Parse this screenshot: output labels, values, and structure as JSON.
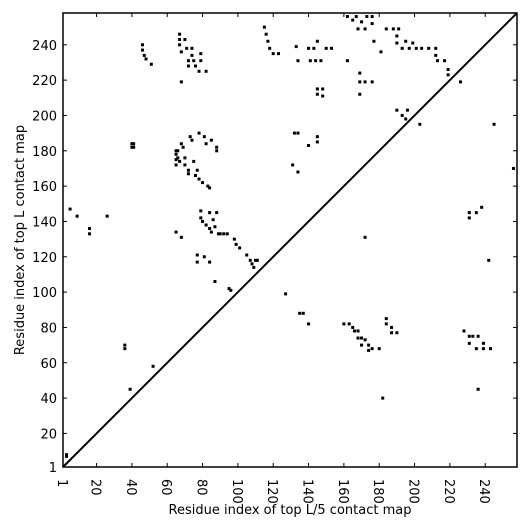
{
  "chart_data": {
    "type": "scatter",
    "xlabel": "Residue index of top L/5 contact map",
    "ylabel": "Residue index of top L contact map",
    "xlim": [
      1,
      258
    ],
    "ylim": [
      1,
      258
    ],
    "xticks": [
      1,
      20,
      40,
      60,
      80,
      100,
      120,
      140,
      160,
      180,
      200,
      220,
      240
    ],
    "yticks": [
      1,
      20,
      40,
      60,
      80,
      100,
      120,
      140,
      160,
      180,
      200,
      220,
      240
    ],
    "color": "#000000",
    "diagonal": true,
    "x": [
      3,
      3,
      5,
      9,
      16,
      16,
      26,
      40,
      40,
      41,
      41,
      36,
      36,
      39,
      52,
      46,
      46,
      47,
      48,
      51,
      65,
      65,
      65,
      65,
      66,
      66,
      67,
      68,
      69,
      70,
      70,
      72,
      72,
      73,
      74,
      75,
      76,
      77,
      78,
      78,
      80,
      81,
      82,
      83,
      84,
      88,
      88,
      85,
      67,
      67,
      67,
      68,
      68,
      70,
      71,
      72,
      72,
      74,
      74,
      75,
      76,
      78,
      79,
      79,
      82,
      79,
      79,
      80,
      82,
      84,
      84,
      85,
      86,
      87,
      88,
      89,
      90,
      92,
      94,
      65,
      68,
      77,
      77,
      81,
      84,
      87,
      95,
      96,
      98,
      99,
      101,
      105,
      107,
      108,
      110,
      111,
      109,
      115,
      116,
      117,
      118,
      120,
      123,
      127,
      131,
      132,
      134,
      134,
      133,
      134,
      135,
      137,
      140,
      140,
      141,
      140,
      143,
      144,
      145,
      147,
      145,
      145,
      148,
      145,
      148,
      145,
      150,
      153,
      162,
      162,
      165,
      167,
      170,
      173,
      176,
      176,
      168,
      172,
      169,
      169,
      169,
      172,
      176,
      177,
      181,
      172,
      184,
      188,
      191,
      190,
      190,
      193,
      195,
      197,
      199,
      201,
      204,
      208,
      212,
      212,
      213,
      217,
      219,
      219,
      226,
      190,
      193,
      196,
      195,
      203,
      245,
      256,
      160,
      163,
      165,
      166,
      168,
      168,
      170,
      170,
      172,
      174,
      176,
      174,
      180,
      184,
      184,
      187,
      187,
      190,
      182,
      228,
      231,
      233,
      231,
      235,
      236,
      239,
      239,
      243,
      236,
      231,
      231,
      235,
      238,
      242
    ],
    "values": [
      7,
      8,
      147,
      143,
      136,
      133,
      143,
      184,
      182,
      184,
      182,
      70,
      68,
      45,
      58,
      240,
      237,
      234,
      232,
      229,
      180,
      178,
      175,
      172,
      180,
      176,
      174,
      184,
      182,
      176,
      172,
      169,
      167,
      188,
      186,
      174,
      166,
      169,
      190,
      164,
      162,
      188,
      184,
      160,
      159,
      182,
      180,
      186,
      246,
      243,
      240,
      236,
      219,
      243,
      238,
      231,
      228,
      238,
      234,
      231,
      228,
      225,
      235,
      231,
      225,
      146,
      142,
      140,
      138,
      145,
      136,
      134,
      141,
      137,
      145,
      133,
      133,
      133,
      133,
      134,
      131,
      121,
      117,
      120,
      117,
      106,
      102,
      101,
      130,
      127,
      125,
      121,
      118,
      116,
      118,
      118,
      114,
      250,
      246,
      242,
      238,
      235,
      235,
      99,
      172,
      190,
      190,
      168,
      239,
      231,
      88,
      88,
      82,
      183,
      231,
      238,
      238,
      231,
      242,
      231,
      188,
      185,
      215,
      212,
      211,
      215,
      238,
      238,
      231,
      256,
      254,
      256,
      253,
      256,
      256,
      252,
      249,
      249,
      224,
      219,
      212,
      219,
      219,
      242,
      236,
      131,
      249,
      249,
      249,
      245,
      241,
      238,
      242,
      238,
      241,
      238,
      238,
      238,
      238,
      234,
      231,
      231,
      226,
      223,
      219,
      203,
      200,
      203,
      198,
      195,
      195,
      170,
      82,
      82,
      80,
      78,
      78,
      74,
      74,
      70,
      73,
      70,
      68,
      67,
      68,
      85,
      82,
      80,
      77,
      77,
      40,
      78,
      75,
      75,
      71,
      68,
      75,
      71,
      68,
      68,
      45,
      145,
      142,
      145,
      148,
      118
    ]
  }
}
